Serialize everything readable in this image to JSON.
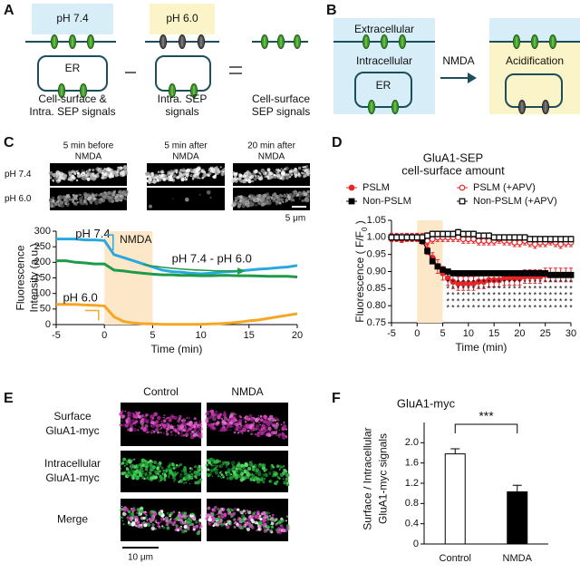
{
  "panel_labels": [
    "A",
    "B",
    "C",
    "D",
    "E",
    "F"
  ],
  "panel_a": {
    "ph_high": "pH 7.4",
    "ph_low": "pH 6.0",
    "er": "ER",
    "captions": [
      [
        "Cell-surface &",
        "Intra. SEP signals"
      ],
      [
        "Intra. SEP",
        "signals"
      ],
      [
        "Cell-surface",
        "SEP signals"
      ]
    ]
  },
  "panel_b": {
    "extracellular": "Extracellular",
    "intracellular": "Intracellular",
    "er": "ER",
    "arrow_label": "NMDA",
    "acidification": "Acidification"
  },
  "panel_c_images": {
    "columns": [
      [
        "5 min before",
        "NMDA"
      ],
      [
        "5 min after",
        "NMDA"
      ],
      [
        "20 min after",
        "NMDA"
      ]
    ],
    "rows": [
      "pH 7.4",
      "pH 6.0"
    ],
    "scale_bar": "5 μm"
  },
  "panel_e": {
    "columns": [
      "Control",
      "NMDA"
    ],
    "rows": [
      [
        "Surface",
        "GluA1-myc"
      ],
      [
        "Intracellular",
        "GluA1-myc"
      ],
      [
        "Merge"
      ]
    ],
    "scale_bar": "10 μm"
  },
  "chart_data": [
    {
      "type": "line",
      "xlabel": "Time (min)",
      "ylabel": [
        "Fluorescence",
        "Intensity (a.u.)"
      ],
      "x": [
        -5,
        -4,
        -3,
        -2,
        -1,
        0,
        1,
        2,
        3,
        4,
        5,
        6,
        7,
        8,
        9,
        10,
        11,
        12,
        13,
        14,
        15,
        16,
        17,
        18,
        19,
        20
      ],
      "xlim": [
        -5,
        20
      ],
      "xticks": [
        -5,
        0,
        5,
        10,
        15,
        20
      ],
      "ylim": [
        0,
        300
      ],
      "yticks": [
        0,
        50,
        100,
        150,
        200,
        250,
        300
      ],
      "shade": {
        "x": [
          0,
          5
        ],
        "label": "NMDA",
        "color": "#fde7c9",
        "label_color": "#f5a623"
      },
      "series": [
        {
          "name": "pH 7.4",
          "color": "#29a8e0",
          "values": [
            275,
            275,
            275,
            272,
            272,
            270,
            225,
            215,
            205,
            195,
            185,
            175,
            170,
            168,
            165,
            163,
            165,
            168,
            170,
            172,
            175,
            178,
            180,
            183,
            185,
            190
          ]
        },
        {
          "name": "pH 7.4 - pH 6.0",
          "color": "#1f9a48",
          "values": [
            205,
            205,
            200,
            198,
            195,
            195,
            175,
            172,
            168,
            165,
            162,
            160,
            160,
            158,
            158,
            157,
            157,
            158,
            158,
            157,
            157,
            156,
            155,
            155,
            155,
            153
          ]
        },
        {
          "name": "pH 6.0",
          "color": "#f5a623",
          "values": [
            65,
            65,
            65,
            63,
            62,
            60,
            25,
            10,
            5,
            3,
            2,
            1,
            1,
            1,
            1,
            1,
            2,
            3,
            5,
            8,
            12,
            15,
            20,
            25,
            30,
            35
          ]
        }
      ]
    },
    {
      "type": "errorline",
      "title": [
        "GluA1-SEP",
        "cell-surface amount"
      ],
      "xlabel": "Time (min)",
      "ylabel": [
        "Fluorescence ( F/F",
        "0",
        " )"
      ],
      "x": [
        -5,
        -4,
        -3,
        -2,
        -1,
        0,
        1,
        2,
        3,
        4,
        5,
        6,
        7,
        8,
        9,
        10,
        11,
        12,
        13,
        14,
        15,
        16,
        17,
        18,
        19,
        20,
        21,
        22,
        23,
        24,
        25,
        26,
        27,
        28,
        29,
        30
      ],
      "xlim": [
        -5,
        30
      ],
      "xticks": [
        -5,
        0,
        5,
        10,
        15,
        20,
        25,
        30
      ],
      "ylim": [
        0.75,
        1.05
      ],
      "yticks": [
        0.75,
        {
          "value": 0.8,
          "label": "0.80"
        },
        0.85,
        {
          "value": 0.9,
          "label": "0.90"
        },
        0.95,
        {
          "value": 1,
          "label": "1.00"
        },
        1.05
      ],
      "shade": {
        "x": [
          0,
          5
        ],
        "color": "#fde7c9"
      },
      "legend": "top",
      "significance": {
        "label": "*",
        "xlim": [
          6,
          30
        ]
      },
      "series": [
        {
          "name": "PSLM",
          "color": "#e8262a",
          "marker": "circle",
          "filled": true,
          "values": [
            1,
            1,
            0.995,
            1,
            1,
            1,
            0.99,
            0.965,
            0.94,
            0.915,
            0.895,
            0.88,
            0.87,
            0.865,
            0.865,
            0.865,
            0.865,
            0.87,
            0.87,
            0.875,
            0.875,
            0.875,
            0.88,
            0.88,
            0.88,
            0.88,
            0.885,
            0.885,
            0.885,
            0.885,
            0.89,
            0.89,
            0.89,
            0.89,
            0.89,
            0.89
          ],
          "errors": [
            0.01,
            0.01,
            0.01,
            0.01,
            0.01,
            0.01,
            0.01,
            0.015,
            0.015,
            0.02,
            0.02,
            0.02,
            0.02,
            0.02,
            0.02,
            0.02,
            0.02,
            0.02,
            0.02,
            0.02,
            0.02,
            0.02,
            0.02,
            0.02,
            0.02,
            0.02,
            0.02,
            0.02,
            0.02,
            0.02,
            0.02,
            0.02,
            0.02,
            0.02,
            0.02,
            0.02
          ]
        },
        {
          "name": "PSLM (+APV)",
          "color": "#e8262a",
          "marker": "circle",
          "filled": false,
          "values": [
            1,
            1,
            1,
            1,
            1,
            1,
            1,
            0.99,
            0.995,
            1,
            1,
            1,
            1,
            1,
            0.995,
            0.995,
            0.995,
            0.99,
            0.99,
            0.99,
            0.99,
            0.995,
            0.99,
            0.99,
            0.985,
            0.985,
            0.99,
            0.985,
            0.98,
            0.985,
            0.985,
            0.99,
            0.985,
            0.98,
            0.985,
            0.985
          ],
          "errors": [
            0.012,
            0.012,
            0.012,
            0.012,
            0.012,
            0.012,
            0.012,
            0.012,
            0.012,
            0.012,
            0.012,
            0.012,
            0.012,
            0.012,
            0.012,
            0.012,
            0.012,
            0.012,
            0.012,
            0.012,
            0.012,
            0.012,
            0.012,
            0.012,
            0.012,
            0.012,
            0.012,
            0.012,
            0.012,
            0.012,
            0.012,
            0.012,
            0.012,
            0.012,
            0.012,
            0.012
          ]
        },
        {
          "name": "Non-PSLM",
          "color": "#000000",
          "marker": "square",
          "filled": true,
          "values": [
            1,
            1,
            1,
            1,
            1,
            1,
            0.99,
            0.96,
            0.93,
            0.915,
            0.905,
            0.9,
            0.895,
            0.895,
            0.895,
            0.895,
            0.895,
            0.895,
            0.895,
            0.895,
            0.895,
            0.895,
            0.895,
            0.895,
            0.895,
            0.895,
            0.895,
            0.895,
            0.895,
            0.895,
            0.895,
            0.89,
            0.89,
            0.89,
            0.89,
            0.89
          ],
          "errors": [
            0.006,
            0.006,
            0.006,
            0.006,
            0.006,
            0.006,
            0.006,
            0.006,
            0.006,
            0.006,
            0.006,
            0.006,
            0.006,
            0.006,
            0.006,
            0.006,
            0.006,
            0.006,
            0.006,
            0.006,
            0.006,
            0.006,
            0.006,
            0.006,
            0.006,
            0.006,
            0.006,
            0.006,
            0.006,
            0.006,
            0.006,
            0.006,
            0.006,
            0.006,
            0.006,
            0.006
          ]
        },
        {
          "name": "Non-PSLM (+APV)",
          "color": "#000000",
          "marker": "square",
          "filled": false,
          "values": [
            1,
            1,
            1,
            1,
            1,
            1,
            1,
            1.005,
            1.01,
            1.01,
            1.01,
            1.01,
            1.01,
            1.015,
            1.01,
            1.01,
            1.01,
            1.005,
            1.005,
            1.005,
            1,
            1,
            1,
            1,
            1,
            1,
            1,
            0.995,
            0.995,
            0.995,
            0.995,
            0.995,
            0.995,
            0.995,
            0.995,
            0.995
          ],
          "errors": [
            0.008,
            0.008,
            0.008,
            0.008,
            0.008,
            0.008,
            0.008,
            0.008,
            0.008,
            0.008,
            0.008,
            0.008,
            0.008,
            0.008,
            0.008,
            0.008,
            0.008,
            0.008,
            0.008,
            0.008,
            0.008,
            0.008,
            0.008,
            0.008,
            0.008,
            0.008,
            0.008,
            0.008,
            0.008,
            0.008,
            0.008,
            0.008,
            0.008,
            0.008,
            0.008,
            0.008
          ]
        }
      ]
    },
    {
      "type": "bar",
      "title": "GluA1-myc",
      "ylabel": [
        "Surface / Intracellular",
        "GluA1-myc signals"
      ],
      "categories": [
        "Control",
        "NMDA"
      ],
      "values": [
        1.78,
        1.03
      ],
      "errors": [
        0.1,
        0.13
      ],
      "colors": [
        "#ffffff",
        "#000000"
      ],
      "ylim": [
        0,
        2.4
      ],
      "yticks": [
        0,
        0.4,
        0.8,
        1.2,
        1.6,
        {
          "value": 2,
          "label": "2.0"
        }
      ],
      "significance": "***"
    }
  ]
}
